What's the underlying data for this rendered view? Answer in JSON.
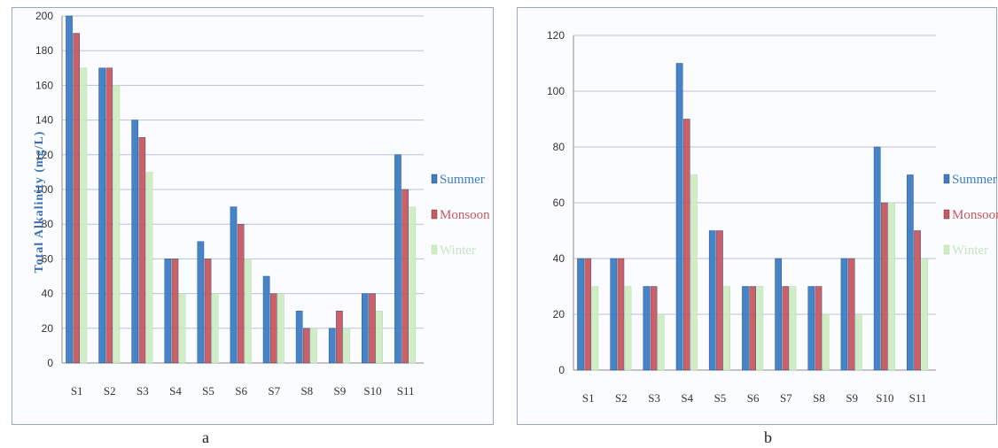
{
  "charts": [
    {
      "panel_label": "a",
      "ylabel": "Total Alkalinity (mg/L)"
    },
    {
      "panel_label": "b",
      "ylabel": ""
    }
  ],
  "chart_data": [
    {
      "type": "bar",
      "title": "",
      "xlabel": "",
      "ylabel": "Total Alkalinity (mg/L)",
      "categories": [
        "S1",
        "S2",
        "S3",
        "S4",
        "S5",
        "S6",
        "S7",
        "S8",
        "S9",
        "S10",
        "S11"
      ],
      "ylim": [
        0,
        200
      ],
      "yticks": [
        0,
        20,
        40,
        60,
        80,
        100,
        120,
        140,
        160,
        180,
        200
      ],
      "grid": true,
      "legend": "right",
      "series": [
        {
          "name": "Summer",
          "color": "#3d7ec8",
          "values": [
            200,
            170,
            140,
            60,
            70,
            90,
            50,
            30,
            20,
            40,
            120
          ]
        },
        {
          "name": "Monsoon",
          "color": "#c9585f",
          "values": [
            190,
            170,
            130,
            60,
            60,
            80,
            40,
            20,
            30,
            40,
            100
          ]
        },
        {
          "name": "Winter",
          "color": "#cdeec4",
          "values": [
            170,
            160,
            110,
            40,
            40,
            60,
            40,
            20,
            20,
            30,
            90
          ]
        }
      ]
    },
    {
      "type": "bar",
      "title": "",
      "xlabel": "",
      "ylabel": "",
      "categories": [
        "S1",
        "S2",
        "S3",
        "S4",
        "S5",
        "S6",
        "S7",
        "S8",
        "S9",
        "S10",
        "S11"
      ],
      "ylim": [
        0,
        120
      ],
      "yticks": [
        0,
        20,
        40,
        60,
        80,
        100,
        120
      ],
      "grid": true,
      "legend": "right",
      "series": [
        {
          "name": "Summer",
          "color": "#3d7ec8",
          "values": [
            40,
            40,
            30,
            110,
            50,
            30,
            40,
            30,
            40,
            80,
            70
          ]
        },
        {
          "name": "Monsoon",
          "color": "#c9585f",
          "values": [
            40,
            40,
            30,
            90,
            50,
            30,
            30,
            30,
            40,
            60,
            50
          ]
        },
        {
          "name": "Winter",
          "color": "#cdeec4",
          "values": [
            30,
            30,
            20,
            70,
            30,
            30,
            30,
            20,
            20,
            60,
            40
          ]
        }
      ]
    }
  ]
}
